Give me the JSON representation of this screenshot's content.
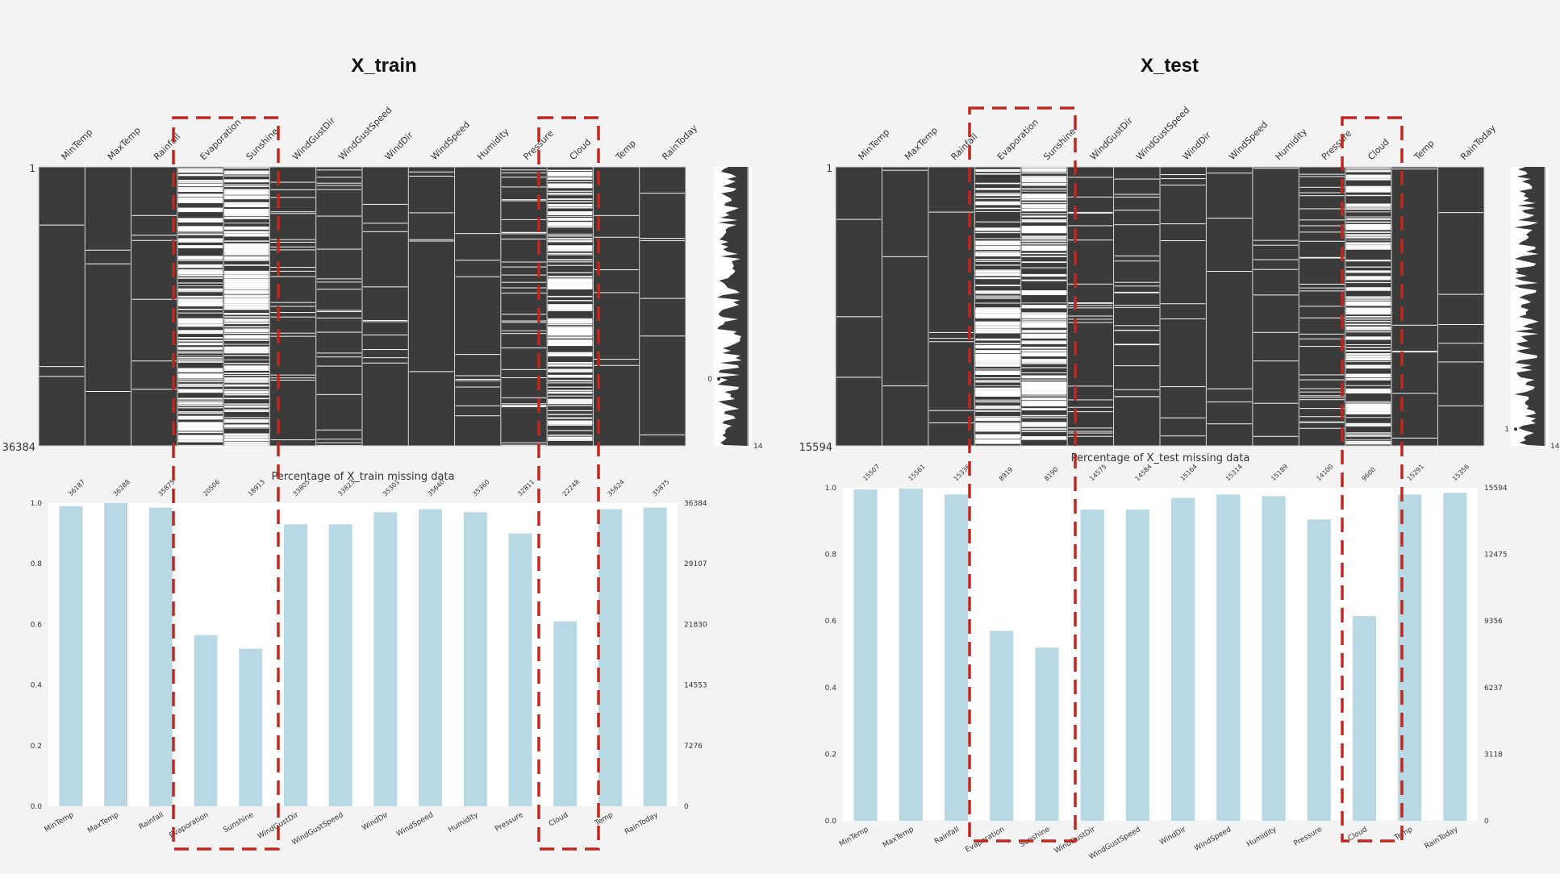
{
  "panels": [
    {
      "title": "X_train",
      "columns": [
        "MinTemp",
        "MaxTemp",
        "Rainfall",
        "Evaporation",
        "Sunshine",
        "WindGustDir",
        "WindGustSpeed",
        "WindDir",
        "WindSpeed",
        "Humidity",
        "Pressure",
        "Cloud",
        "Temp",
        "RainToday"
      ],
      "row_start": "1",
      "row_end": "36384",
      "highlighted": [
        "Evaporation",
        "Sunshine",
        "Cloud"
      ],
      "sparkline": {
        "labels": [
          "0",
          "14"
        ]
      }
    },
    {
      "title": "X_test",
      "columns": [
        "MinTemp",
        "MaxTemp",
        "Rainfall",
        "Evaporation",
        "Sunshine",
        "WindGustDir",
        "WindGustSpeed",
        "WindDir",
        "WindSpeed",
        "Humidity",
        "Pressure",
        "Cloud",
        "Temp",
        "RainToday"
      ],
      "row_start": "1",
      "row_end": "15594",
      "highlighted": [
        "Evaporation",
        "Sunshine",
        "Cloud"
      ],
      "sparkline": {
        "labels": [
          "1",
          "14"
        ]
      }
    }
  ],
  "chart_data": [
    {
      "type": "heatmap",
      "title": "X_train",
      "categories": [
        "MinTemp",
        "MaxTemp",
        "Rainfall",
        "Evaporation",
        "Sunshine",
        "WindGustDir",
        "WindGustSpeed",
        "WindDir",
        "WindSpeed",
        "Humidity",
        "Pressure",
        "Cloud",
        "Temp",
        "RainToday"
      ],
      "completeness": [
        0.99,
        0.99,
        0.98,
        0.56,
        0.52,
        0.93,
        0.93,
        0.97,
        0.98,
        0.97,
        0.9,
        0.61,
        0.98,
        0.98
      ],
      "rows": [
        1,
        36384
      ],
      "colors": {
        "present": "#3b3b3b",
        "missing": "#ffffff"
      }
    },
    {
      "type": "bar",
      "title": "Percentage of X_train missing data",
      "categories": [
        "MinTemp",
        "MaxTemp",
        "Rainfall",
        "Evaporation",
        "Sunshine",
        "WindGustDir",
        "WindGustSpeed",
        "WindDir",
        "WindSpeed",
        "Humidity",
        "Pressure",
        "Cloud",
        "Temp",
        "RainToday"
      ],
      "values": [
        0.99,
        1.0,
        0.985,
        0.565,
        0.52,
        0.93,
        0.93,
        0.97,
        0.98,
        0.97,
        0.9,
        0.61,
        0.98,
        0.985
      ],
      "counts": [
        "36187",
        "36288",
        "35875",
        "20506",
        "18913",
        "33805",
        "33823",
        "35301",
        "35640",
        "35360",
        "32811",
        "22248",
        "35624",
        "35875"
      ],
      "ylim": [
        0,
        1.0
      ],
      "yticks": [
        "0.0",
        "0.2",
        "0.4",
        "0.6",
        "0.8",
        "1.0"
      ],
      "right_ticks": [
        "0",
        "7276",
        "14553",
        "21830",
        "29107",
        "36384"
      ],
      "color": "#b8d9e4"
    },
    {
      "type": "heatmap",
      "title": "X_test",
      "categories": [
        "MinTemp",
        "MaxTemp",
        "Rainfall",
        "Evaporation",
        "Sunshine",
        "WindGustDir",
        "WindGustSpeed",
        "WindDir",
        "WindSpeed",
        "Humidity",
        "Pressure",
        "Cloud",
        "Temp",
        "RainToday"
      ],
      "completeness": [
        0.99,
        0.99,
        0.98,
        0.57,
        0.52,
        0.93,
        0.93,
        0.97,
        0.98,
        0.97,
        0.9,
        0.61,
        0.98,
        0.98
      ],
      "rows": [
        1,
        15594
      ],
      "colors": {
        "present": "#3b3b3b",
        "missing": "#ffffff"
      }
    },
    {
      "type": "bar",
      "title": "Percentage of X_test missing data",
      "categories": [
        "MinTemp",
        "MaxTemp",
        "Rainfall",
        "Evaporation",
        "Sunshine",
        "WindGustDir",
        "WindGustSpeed",
        "WindDir",
        "WindSpeed",
        "Humidity",
        "Pressure",
        "Cloud",
        "Temp",
        "RainToday"
      ],
      "values": [
        0.995,
        0.998,
        0.98,
        0.57,
        0.52,
        0.935,
        0.935,
        0.97,
        0.98,
        0.975,
        0.905,
        0.615,
        0.98,
        0.985
      ],
      "counts": [
        "15507",
        "15561",
        "15336",
        "8919",
        "8190",
        "14575",
        "14584",
        "15164",
        "15314",
        "15189",
        "14100",
        "9600",
        "15291",
        "15356"
      ],
      "ylim": [
        0,
        1.0
      ],
      "yticks": [
        "0.0",
        "0.2",
        "0.4",
        "0.6",
        "0.8",
        "1.0"
      ],
      "right_ticks": [
        "0",
        "3118",
        "6237",
        "9356",
        "12475",
        "15594"
      ],
      "color": "#b8d9e4"
    }
  ],
  "colors": {
    "highlight": "#c0281f",
    "bar": "#b8d9e4",
    "matrix": "#3b3b3b",
    "background": "#f3f3f3"
  }
}
